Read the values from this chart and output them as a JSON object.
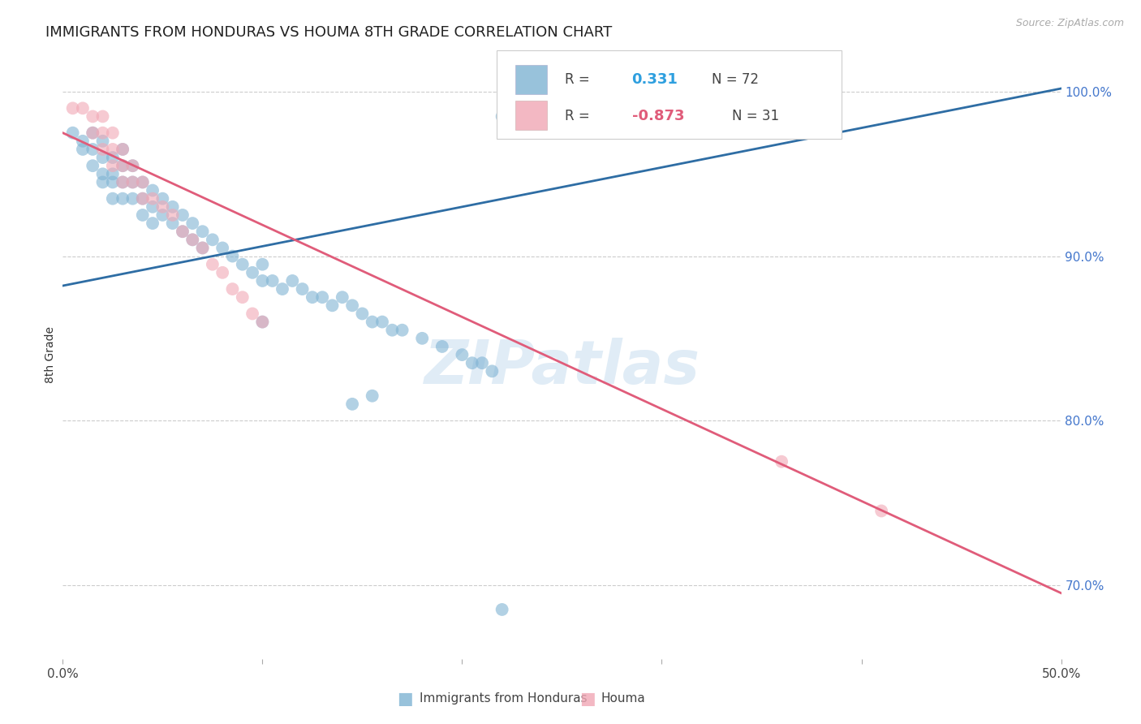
{
  "title": "IMMIGRANTS FROM HONDURAS VS HOUMA 8TH GRADE CORRELATION CHART",
  "source": "Source: ZipAtlas.com",
  "ylabel": "8th Grade",
  "xlim": [
    0.0,
    0.5
  ],
  "ylim": [
    0.655,
    1.025
  ],
  "xticks": [
    0.0,
    0.1,
    0.2,
    0.3,
    0.4,
    0.5
  ],
  "xticklabels": [
    "0.0%",
    "",
    "",
    "",
    "",
    "50.0%"
  ],
  "yticks_right": [
    0.7,
    0.8,
    0.9,
    1.0
  ],
  "yticklabels_right": [
    "70.0%",
    "80.0%",
    "90.0%",
    "100.0%"
  ],
  "grid_color": "#cccccc",
  "background_color": "#ffffff",
  "blue_color": "#7fb3d3",
  "pink_color": "#f1a7b5",
  "blue_line_color": "#2e6da4",
  "pink_line_color": "#e05c7a",
  "title_fontsize": 13,
  "axis_label_fontsize": 10,
  "tick_fontsize": 11,
  "legend_val1": "0.331",
  "legend_N1": "N = 72",
  "legend_val2": "-0.873",
  "legend_N2": "N = 31",
  "watermark": "ZIPatlas",
  "legend1_label": "Immigrants from Honduras",
  "legend2_label": "Houma",
  "blue_scatter": [
    [
      0.005,
      0.975
    ],
    [
      0.01,
      0.97
    ],
    [
      0.01,
      0.965
    ],
    [
      0.015,
      0.975
    ],
    [
      0.015,
      0.965
    ],
    [
      0.015,
      0.955
    ],
    [
      0.02,
      0.97
    ],
    [
      0.02,
      0.96
    ],
    [
      0.02,
      0.95
    ],
    [
      0.02,
      0.945
    ],
    [
      0.025,
      0.96
    ],
    [
      0.025,
      0.95
    ],
    [
      0.025,
      0.945
    ],
    [
      0.025,
      0.935
    ],
    [
      0.03,
      0.965
    ],
    [
      0.03,
      0.955
    ],
    [
      0.03,
      0.945
    ],
    [
      0.03,
      0.935
    ],
    [
      0.035,
      0.955
    ],
    [
      0.035,
      0.945
    ],
    [
      0.035,
      0.935
    ],
    [
      0.04,
      0.945
    ],
    [
      0.04,
      0.935
    ],
    [
      0.04,
      0.925
    ],
    [
      0.045,
      0.94
    ],
    [
      0.045,
      0.93
    ],
    [
      0.045,
      0.92
    ],
    [
      0.05,
      0.935
    ],
    [
      0.05,
      0.925
    ],
    [
      0.055,
      0.93
    ],
    [
      0.055,
      0.92
    ],
    [
      0.06,
      0.925
    ],
    [
      0.06,
      0.915
    ],
    [
      0.065,
      0.92
    ],
    [
      0.065,
      0.91
    ],
    [
      0.07,
      0.915
    ],
    [
      0.07,
      0.905
    ],
    [
      0.075,
      0.91
    ],
    [
      0.08,
      0.905
    ],
    [
      0.085,
      0.9
    ],
    [
      0.09,
      0.895
    ],
    [
      0.095,
      0.89
    ],
    [
      0.1,
      0.895
    ],
    [
      0.1,
      0.885
    ],
    [
      0.105,
      0.885
    ],
    [
      0.11,
      0.88
    ],
    [
      0.115,
      0.885
    ],
    [
      0.12,
      0.88
    ],
    [
      0.125,
      0.875
    ],
    [
      0.13,
      0.875
    ],
    [
      0.135,
      0.87
    ],
    [
      0.14,
      0.875
    ],
    [
      0.145,
      0.87
    ],
    [
      0.15,
      0.865
    ],
    [
      0.155,
      0.86
    ],
    [
      0.16,
      0.86
    ],
    [
      0.165,
      0.855
    ],
    [
      0.17,
      0.855
    ],
    [
      0.18,
      0.85
    ],
    [
      0.19,
      0.845
    ],
    [
      0.2,
      0.84
    ],
    [
      0.205,
      0.835
    ],
    [
      0.21,
      0.835
    ],
    [
      0.215,
      0.83
    ],
    [
      0.22,
      0.985
    ],
    [
      0.235,
      0.985
    ],
    [
      0.255,
      0.985
    ],
    [
      0.295,
      0.985
    ],
    [
      0.1,
      0.86
    ],
    [
      0.145,
      0.81
    ],
    [
      0.155,
      0.815
    ],
    [
      0.22,
      0.685
    ]
  ],
  "pink_scatter": [
    [
      0.005,
      0.99
    ],
    [
      0.01,
      0.99
    ],
    [
      0.015,
      0.985
    ],
    [
      0.02,
      0.985
    ],
    [
      0.015,
      0.975
    ],
    [
      0.02,
      0.975
    ],
    [
      0.025,
      0.975
    ],
    [
      0.02,
      0.965
    ],
    [
      0.025,
      0.965
    ],
    [
      0.03,
      0.965
    ],
    [
      0.025,
      0.955
    ],
    [
      0.03,
      0.955
    ],
    [
      0.035,
      0.955
    ],
    [
      0.03,
      0.945
    ],
    [
      0.035,
      0.945
    ],
    [
      0.04,
      0.945
    ],
    [
      0.04,
      0.935
    ],
    [
      0.045,
      0.935
    ],
    [
      0.05,
      0.93
    ],
    [
      0.055,
      0.925
    ],
    [
      0.06,
      0.915
    ],
    [
      0.065,
      0.91
    ],
    [
      0.07,
      0.905
    ],
    [
      0.075,
      0.895
    ],
    [
      0.08,
      0.89
    ],
    [
      0.085,
      0.88
    ],
    [
      0.09,
      0.875
    ],
    [
      0.095,
      0.865
    ],
    [
      0.36,
      0.775
    ],
    [
      0.41,
      0.745
    ],
    [
      0.1,
      0.86
    ]
  ],
  "blue_line": {
    "x0": 0.0,
    "y0": 0.882,
    "x1": 0.5,
    "y1": 1.002
  },
  "pink_line": {
    "x0": 0.0,
    "y0": 0.975,
    "x1": 0.5,
    "y1": 0.695
  }
}
